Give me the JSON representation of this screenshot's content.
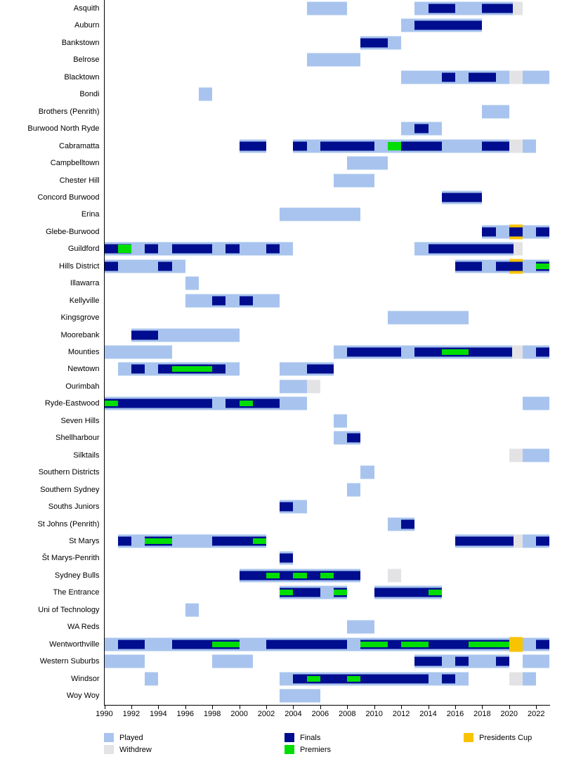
{
  "chart_data": {
    "type": "timeline",
    "title": "",
    "x_axis": {
      "min": 1990,
      "max": 2023,
      "tick_start": 1990,
      "tick_end": 2022,
      "tick_step": 2,
      "tick_labels": [
        "1990",
        "1992",
        "1994",
        "1996",
        "1998",
        "2000",
        "2002",
        "2004",
        "2006",
        "2008",
        "2010",
        "2012",
        "2014",
        "2016",
        "2018",
        "2020",
        "2022"
      ]
    },
    "legend": [
      {
        "key": "played",
        "label": "Played",
        "color": "#a8c4ee"
      },
      {
        "key": "withdrew",
        "label": "Withdrew",
        "color": "#e3e3e6"
      },
      {
        "key": "finals",
        "label": "Finals",
        "color": "#000d8f"
      },
      {
        "key": "premiers",
        "label": "Premiers",
        "color": "#00dd00"
      },
      {
        "key": "prescup",
        "label": "Presidents Cup",
        "color": "#f8c300"
      }
    ],
    "teams": [
      {
        "name": "Asquith",
        "played": [
          [
            2005,
            2008
          ],
          [
            2013,
            2021
          ]
        ],
        "finals": [
          [
            2014,
            2016
          ],
          [
            2018,
            2020.25
          ]
        ],
        "premiers": [],
        "withdrew": [
          [
            2020.25,
            2021
          ]
        ],
        "prescup": []
      },
      {
        "name": "Auburn",
        "played": [
          [
            2012,
            2018
          ]
        ],
        "finals": [
          [
            2013,
            2018
          ]
        ],
        "premiers": [],
        "withdrew": [],
        "prescup": []
      },
      {
        "name": "Bankstown",
        "played": [
          [
            2009,
            2012
          ]
        ],
        "finals": [
          [
            2009,
            2011
          ]
        ],
        "premiers": [],
        "withdrew": [],
        "prescup": []
      },
      {
        "name": "Belrose",
        "played": [
          [
            2005,
            2009
          ]
        ],
        "finals": [],
        "premiers": [],
        "withdrew": [],
        "prescup": []
      },
      {
        "name": "Blacktown",
        "played": [
          [
            2012,
            2023
          ]
        ],
        "finals": [
          [
            2015,
            2016
          ],
          [
            2017,
            2019
          ]
        ],
        "premiers": [],
        "withdrew": [
          [
            2020,
            2021
          ]
        ],
        "prescup": []
      },
      {
        "name": "Bondi",
        "played": [
          [
            1997,
            1998
          ]
        ],
        "finals": [],
        "premiers": [],
        "withdrew": [],
        "prescup": []
      },
      {
        "name": "Brothers (Penrith)",
        "played": [
          [
            2018,
            2020
          ]
        ],
        "finals": [],
        "premiers": [],
        "withdrew": [],
        "prescup": []
      },
      {
        "name": "Burwood North Ryde",
        "played": [
          [
            2012,
            2015
          ]
        ],
        "finals": [
          [
            2013,
            2014
          ]
        ],
        "premiers": [],
        "withdrew": [],
        "prescup": []
      },
      {
        "name": "Cabramatta",
        "played": [
          [
            2000,
            2002
          ],
          [
            2004,
            2022
          ]
        ],
        "finals": [
          [
            2000,
            2002
          ],
          [
            2004,
            2005
          ],
          [
            2006,
            2010
          ],
          [
            2012,
            2015
          ],
          [
            2018,
            2020
          ]
        ],
        "premiers": [
          [
            2011,
            2012,
            "full"
          ]
        ],
        "withdrew": [
          [
            2020,
            2021
          ]
        ],
        "prescup": []
      },
      {
        "name": "Campbelltown",
        "played": [
          [
            2008,
            2011
          ]
        ],
        "finals": [],
        "premiers": [],
        "withdrew": [],
        "prescup": []
      },
      {
        "name": "Chester Hill",
        "played": [
          [
            2007,
            2010
          ]
        ],
        "finals": [],
        "premiers": [],
        "withdrew": [],
        "prescup": []
      },
      {
        "name": "Concord Burwood",
        "played": [
          [
            2015,
            2018
          ]
        ],
        "finals": [
          [
            2015,
            2018
          ]
        ],
        "premiers": [],
        "withdrew": [],
        "prescup": []
      },
      {
        "name": "Erina",
        "played": [
          [
            2003,
            2009
          ]
        ],
        "finals": [],
        "premiers": [],
        "withdrew": [],
        "prescup": []
      },
      {
        "name": "Glebe-Burwood",
        "played": [
          [
            2018,
            2023
          ]
        ],
        "finals": [
          [
            2018,
            2019
          ],
          [
            2020,
            2021
          ],
          [
            2022,
            2023
          ]
        ],
        "premiers": [],
        "withdrew": [],
        "prescup": [
          [
            2020,
            2021
          ]
        ]
      },
      {
        "name": "Guildford",
        "played": [
          [
            1990,
            2004
          ],
          [
            2013,
            2021
          ]
        ],
        "finals": [
          [
            1990,
            1992
          ],
          [
            1993,
            1994
          ],
          [
            1995,
            1998
          ],
          [
            1999,
            2000
          ],
          [
            2002,
            2003
          ],
          [
            2014,
            2020.3
          ]
        ],
        "premiers": [
          [
            1991,
            1992,
            "full"
          ]
        ],
        "withdrew": [
          [
            2020.3,
            2021
          ]
        ],
        "prescup": []
      },
      {
        "name": "Hills District",
        "played": [
          [
            1990,
            1996
          ],
          [
            2016,
            2023
          ]
        ],
        "finals": [
          [
            1990,
            1991
          ],
          [
            1994,
            1995
          ],
          [
            2016,
            2018
          ],
          [
            2019,
            2021
          ],
          [
            2022,
            2023
          ]
        ],
        "premiers": [
          [
            2022,
            2023,
            "inset"
          ]
        ],
        "withdrew": [],
        "prescup": [
          [
            2020,
            2021
          ]
        ]
      },
      {
        "name": "Illawarra",
        "played": [
          [
            1996,
            1997
          ]
        ],
        "finals": [],
        "premiers": [],
        "withdrew": [],
        "prescup": []
      },
      {
        "name": "Kellyville",
        "played": [
          [
            1996,
            2003
          ]
        ],
        "finals": [
          [
            1998,
            1999
          ],
          [
            2000,
            2001
          ]
        ],
        "premiers": [],
        "withdrew": [],
        "prescup": []
      },
      {
        "name": "Kingsgrove",
        "played": [
          [
            2011,
            2017
          ]
        ],
        "finals": [],
        "premiers": [],
        "withdrew": [],
        "prescup": []
      },
      {
        "name": "Moorebank",
        "played": [
          [
            1992,
            2000
          ]
        ],
        "finals": [
          [
            1992,
            1994
          ]
        ],
        "premiers": [],
        "withdrew": [],
        "prescup": []
      },
      {
        "name": "Mounties",
        "played": [
          [
            1990,
            1995
          ],
          [
            2007,
            2023
          ]
        ],
        "finals": [
          [
            2008,
            2012
          ],
          [
            2013,
            2020.2
          ],
          [
            2022,
            2023
          ]
        ],
        "premiers": [
          [
            2015,
            2017,
            "inset"
          ]
        ],
        "withdrew": [
          [
            2020.2,
            2021
          ]
        ],
        "prescup": []
      },
      {
        "name": "Newtown",
        "played": [
          [
            1991,
            2000
          ],
          [
            2003,
            2007
          ]
        ],
        "finals": [
          [
            1992,
            1993
          ],
          [
            1994,
            1999
          ],
          [
            2005,
            2007
          ]
        ],
        "premiers": [
          [
            1995,
            1998,
            "inset"
          ]
        ],
        "withdrew": [],
        "prescup": []
      },
      {
        "name": "Ourimbah",
        "played": [
          [
            2003,
            2005
          ]
        ],
        "finals": [],
        "premiers": [],
        "withdrew": [
          [
            2005,
            2006
          ]
        ],
        "prescup": []
      },
      {
        "name": "Ryde-Eastwood",
        "played": [
          [
            1990,
            2005
          ],
          [
            2021,
            2023
          ]
        ],
        "finals": [
          [
            1990,
            1998
          ],
          [
            1999,
            2003
          ]
        ],
        "premiers": [
          [
            1990,
            1991,
            "inset"
          ],
          [
            2000,
            2001,
            "inset"
          ]
        ],
        "withdrew": [],
        "prescup": []
      },
      {
        "name": "Seven Hills",
        "played": [
          [
            2007,
            2008
          ]
        ],
        "finals": [],
        "premiers": [],
        "withdrew": [],
        "prescup": []
      },
      {
        "name": "Shellharbour",
        "played": [
          [
            2007,
            2009
          ]
        ],
        "finals": [
          [
            2008,
            2009
          ]
        ],
        "premiers": [],
        "withdrew": [],
        "prescup": []
      },
      {
        "name": "Silktails",
        "played": [
          [
            2021,
            2023
          ]
        ],
        "finals": [],
        "premiers": [],
        "withdrew": [
          [
            2020,
            2021
          ]
        ],
        "prescup": []
      },
      {
        "name": "Southern Districts",
        "played": [
          [
            2009,
            2010
          ]
        ],
        "finals": [],
        "premiers": [],
        "withdrew": [],
        "prescup": []
      },
      {
        "name": "Southern Sydney",
        "played": [
          [
            2008,
            2009
          ]
        ],
        "finals": [],
        "premiers": [],
        "withdrew": [],
        "prescup": []
      },
      {
        "name": "Souths Juniors",
        "played": [
          [
            2003,
            2005
          ]
        ],
        "finals": [
          [
            2003,
            2004
          ]
        ],
        "premiers": [],
        "withdrew": [],
        "prescup": []
      },
      {
        "name": "St Johns (Penrith)",
        "played": [
          [
            2011,
            2013
          ]
        ],
        "finals": [
          [
            2012,
            2013
          ]
        ],
        "premiers": [],
        "withdrew": [],
        "prescup": []
      },
      {
        "name": "St Marys",
        "played": [
          [
            1991,
            2002
          ],
          [
            2016,
            2023
          ]
        ],
        "finals": [
          [
            1991,
            1992
          ],
          [
            1993,
            1995
          ],
          [
            1998,
            2002
          ],
          [
            2016,
            2020.3
          ],
          [
            2022,
            2023
          ]
        ],
        "premiers": [
          [
            1993,
            1995,
            "inset"
          ],
          [
            2001,
            2002,
            "inset"
          ]
        ],
        "withdrew": [
          [
            2020.3,
            2021
          ]
        ],
        "prescup": []
      },
      {
        "name": "Št Marys-Penrith",
        "played": [
          [
            2003,
            2004
          ]
        ],
        "finals": [
          [
            2003,
            2004
          ]
        ],
        "premiers": [],
        "withdrew": [],
        "prescup": []
      },
      {
        "name": "Sydney Bulls",
        "played": [
          [
            2000,
            2009
          ]
        ],
        "finals": [
          [
            2000,
            2009
          ]
        ],
        "premiers": [
          [
            2002,
            2003,
            "inset"
          ],
          [
            2004,
            2005,
            "inset"
          ],
          [
            2006,
            2007,
            "inset"
          ]
        ],
        "withdrew": [
          [
            2011,
            2012
          ]
        ],
        "prescup": []
      },
      {
        "name": "The Entrance",
        "played": [
          [
            2003,
            2008
          ],
          [
            2010,
            2015
          ]
        ],
        "finals": [
          [
            2003,
            2006
          ],
          [
            2007,
            2008
          ],
          [
            2010,
            2015
          ]
        ],
        "premiers": [
          [
            2003,
            2004,
            "inset"
          ],
          [
            2007,
            2008,
            "inset"
          ],
          [
            2014,
            2015,
            "inset"
          ]
        ],
        "withdrew": [],
        "prescup": []
      },
      {
        "name": "Uni of Technology",
        "played": [
          [
            1996,
            1997
          ]
        ],
        "finals": [],
        "premiers": [],
        "withdrew": [],
        "prescup": []
      },
      {
        "name": "WA Reds",
        "played": [
          [
            2008,
            2010
          ]
        ],
        "finals": [],
        "premiers": [],
        "withdrew": [],
        "prescup": []
      },
      {
        "name": "Wentworthville",
        "played": [
          [
            1990,
            2023
          ]
        ],
        "finals": [
          [
            1991,
            1993
          ],
          [
            1995,
            2000
          ],
          [
            2002,
            2008
          ],
          [
            2009,
            2020
          ],
          [
            2022,
            2023
          ]
        ],
        "premiers": [
          [
            1998,
            2000,
            "inset"
          ],
          [
            2009,
            2011,
            "inset"
          ],
          [
            2012,
            2014,
            "inset"
          ],
          [
            2017,
            2020,
            "inset"
          ]
        ],
        "withdrew": [],
        "prescup": [
          [
            2020,
            2021
          ]
        ]
      },
      {
        "name": "Western Suburbs",
        "played": [
          [
            1990,
            1993
          ],
          [
            1998,
            2001
          ],
          [
            2013,
            2020
          ],
          [
            2021,
            2023
          ]
        ],
        "finals": [
          [
            2013,
            2015
          ],
          [
            2016,
            2017
          ],
          [
            2019,
            2020
          ]
        ],
        "premiers": [],
        "withdrew": [],
        "prescup": []
      },
      {
        "name": "Windsor",
        "played": [
          [
            1993,
            1994
          ],
          [
            2003,
            2017
          ],
          [
            2021,
            2022
          ]
        ],
        "finals": [
          [
            2004,
            2014
          ],
          [
            2015,
            2016
          ]
        ],
        "premiers": [
          [
            2005,
            2006,
            "inset"
          ],
          [
            2008,
            2009,
            "inset"
          ]
        ],
        "withdrew": [
          [
            2020,
            2021
          ]
        ],
        "prescup": []
      },
      {
        "name": "Woy Woy",
        "played": [
          [
            2003,
            2006
          ]
        ],
        "finals": [],
        "premiers": [],
        "withdrew": [],
        "prescup": []
      }
    ]
  }
}
